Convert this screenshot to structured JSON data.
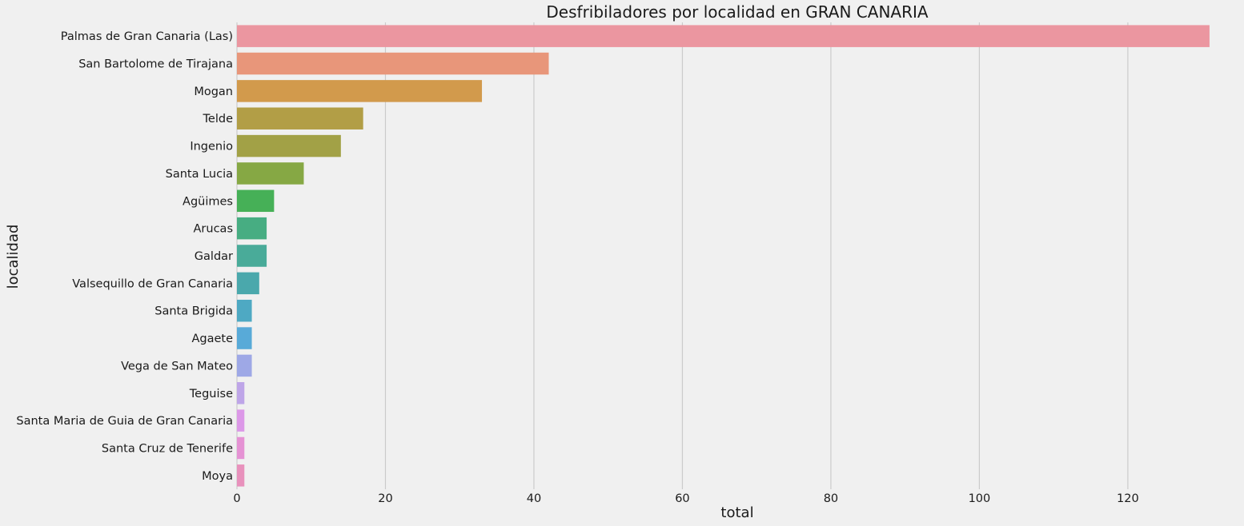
{
  "chart_data": {
    "type": "bar",
    "orientation": "horizontal",
    "title": "Desfribiladores por localidad en GRAN CANARIA",
    "xlabel": "total",
    "ylabel": "localidad",
    "xlim": [
      0,
      135
    ],
    "xticks": [
      0,
      20,
      40,
      60,
      80,
      100,
      120
    ],
    "grid": true,
    "grid_axis": "x",
    "legend": "none",
    "categories": [
      "Palmas de Gran Canaria (Las)",
      "San Bartolome de Tirajana",
      "Mogan",
      "Telde",
      "Ingenio",
      "Santa Lucia",
      "Agüimes",
      "Arucas",
      "Galdar",
      "Valsequillo de Gran Canaria",
      "Santa Brigida",
      "Agaete",
      "Vega de San Mateo",
      "Teguise",
      "Santa Maria de Guia de Gran Canaria",
      "Santa Cruz de Tenerife",
      "Moya"
    ],
    "values": [
      131,
      42,
      33,
      17,
      14,
      9,
      5,
      4,
      4,
      3,
      2,
      2,
      2,
      1,
      1,
      1,
      1
    ],
    "colors": [
      "#eb96a0",
      "#e8967a",
      "#d29a4c",
      "#b29e46",
      "#a2a146",
      "#86a844",
      "#46b057",
      "#47ad82",
      "#49ab99",
      "#4aa8ac",
      "#4ea9c3",
      "#58aad8",
      "#9ea8e6",
      "#bea5e8",
      "#dc98e8",
      "#e592d4",
      "#e891bc"
    ]
  }
}
